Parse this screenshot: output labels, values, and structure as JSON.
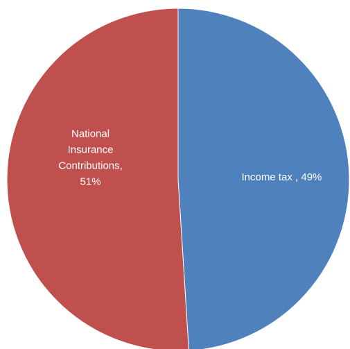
{
  "chart_data": {
    "type": "pie",
    "slices": [
      {
        "name": "Income tax",
        "value": 49,
        "label_lines": [
          "Income tax , 49%"
        ],
        "color": "#4f81bd"
      },
      {
        "name": "National Insurance Contributions",
        "value": 51,
        "label_lines": [
          "National",
          "Insurance",
          "Contributions,",
          "51%"
        ],
        "color": "#c0504d"
      }
    ],
    "start_angle_deg": 0,
    "direction": "clockwise",
    "legend": "none"
  }
}
